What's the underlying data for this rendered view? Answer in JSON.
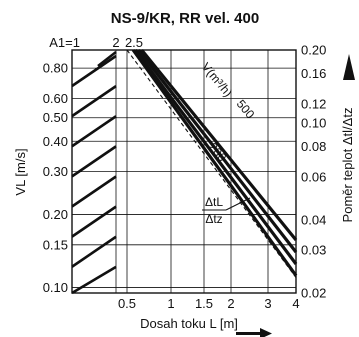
{
  "chart_data": {
    "type": "line",
    "title": "NS-9/KR, RR  vel. 400",
    "xlabel": "Dosah toku L [m]",
    "ylabel_left": "VL [m/s]",
    "ylabel_right": "Poměr teplot Δtl/Δtz",
    "left_y_scale": "log",
    "right_y_scale": "log",
    "x_ticks": [
      "0.5",
      "1",
      "1.5",
      "2",
      "3",
      "4"
    ],
    "top_x_ticks": [
      "A1=1",
      "2",
      "2.5"
    ],
    "left_y_ticks": [
      "0.80",
      "0.60",
      "0.50",
      "0.40",
      "0.30",
      "0.20",
      "0.15",
      "0.10"
    ],
    "right_y_ticks": [
      "0.20",
      "0.16",
      "0.12",
      "0.10",
      "0.08",
      "0.06",
      "0.04",
      "0.03",
      "0.02"
    ],
    "series": [
      {
        "name": "200",
        "style": "thick",
        "x": [
          0.55,
          4.0
        ],
        "y": [
          0.95,
          0.112
        ]
      },
      {
        "name": "",
        "style": "thick",
        "x": [
          0.57,
          4.0
        ],
        "y": [
          0.95,
          0.125
        ]
      },
      {
        "name": "",
        "style": "thick",
        "x": [
          0.6,
          4.0
        ],
        "y": [
          0.95,
          0.14
        ]
      },
      {
        "name": "500",
        "style": "thick",
        "x": [
          0.63,
          4.0
        ],
        "y": [
          0.95,
          0.157
        ]
      },
      {
        "name": "",
        "style": "dashed",
        "x": [
          0.5,
          4.0
        ],
        "y": [
          0.95,
          0.11
        ]
      }
    ],
    "annotations": {
      "v_label": "V(m³/h)",
      "v_min": "200",
      "v_max": "500",
      "ratio_num": "ΔtL",
      "ratio_den": "Δtz"
    },
    "hatch_count": 8
  }
}
